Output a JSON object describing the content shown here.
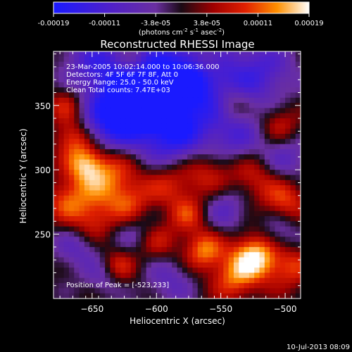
{
  "colorbar": {
    "ticks": [
      "-0.00019",
      "-0.00011",
      "-3.8e-05",
      "3.8e-05",
      "0.00011",
      "0.00019"
    ],
    "unit_label": "(photons cm",
    "unit_exp1": "-2",
    "unit_mid": " s",
    "unit_exp2": "-1",
    "unit_mid2": " asec",
    "unit_exp3": "-2",
    "unit_end": ")"
  },
  "chart_data": {
    "type": "heatmap",
    "title": "Reconstructed RHESSI Image",
    "xlabel": "Heliocentric X (arcsec)",
    "ylabel": "Heliocentric Y (arcsec)",
    "xlim": [
      -680,
      -488
    ],
    "ylim": [
      200,
      392
    ],
    "xticks": [
      -650,
      -600,
      -550,
      -500
    ],
    "yticks": [
      250,
      300,
      350
    ],
    "colormap_stops": [
      {
        "v": -1.0,
        "color": "#1a1aff"
      },
      {
        "v": -0.55,
        "color": "#5020c8"
      },
      {
        "v": -0.2,
        "color": "#6a2fa0"
      },
      {
        "v": 0.0,
        "color": "#1a0a14"
      },
      {
        "v": 0.25,
        "color": "#a00000"
      },
      {
        "v": 0.5,
        "color": "#e02000"
      },
      {
        "v": 0.75,
        "color": "#ff9000"
      },
      {
        "v": 1.0,
        "color": "#ffffff"
      }
    ],
    "annotations": [
      "23-Mar-2005 10:02:14.000 to 10:06:36.000",
      "Detectors: 4F 5F 6F 7F 8F, Att 0",
      "Energy Range: 25.0 - 50.0 keV",
      "Clean    Total counts: 7.47E+03"
    ],
    "peak_label": "Position of Peak = [-523,233]",
    "peak": [
      -523,
      233
    ]
  },
  "timestamp": "10-Jul-2013 08:09"
}
